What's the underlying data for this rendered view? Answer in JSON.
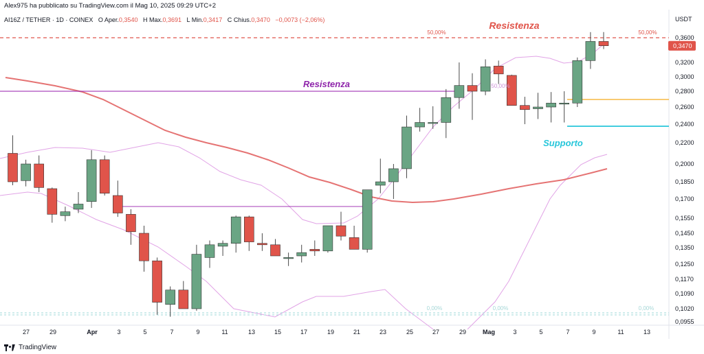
{
  "header": {
    "published": "Alex975 ha pubblicato su TradingView.com il Mag 10, 2025 09:29 UTC+2",
    "symbol": "AI16Z / TETHER · 1D · COINEX",
    "open_label": "O",
    "open_key": "Aper.",
    "open_value": "0,3540",
    "high_label": "H",
    "high_key": "Max.",
    "high_value": "0,3691",
    "low_label": "L",
    "low_key": "Min.",
    "low_value": "0,3417",
    "close_label": "C",
    "close_key": "Chius.",
    "close_value": "0,3470",
    "change": "−0,0073 (−2,06%)"
  },
  "footer": {
    "brand": "TradingView"
  },
  "chart_data": {
    "type": "candlestick",
    "currency": "USDT",
    "last_price": "0,3470",
    "y_ticks": [
      "0,3600",
      "0,3200",
      "0,3000",
      "0,2800",
      "0,2600",
      "0,2400",
      "0,2200",
      "0,2000",
      "0,1850",
      "0,1700",
      "0,1550",
      "0,1450",
      "0,1350",
      "0,1250",
      "0,1170",
      "0,1090",
      "0,1020",
      "0,0955"
    ],
    "x_ticks": [
      "27",
      "29",
      "Apr",
      "3",
      "5",
      "7",
      "9",
      "11",
      "13",
      "15",
      "17",
      "19",
      "21",
      "23",
      "25",
      "27",
      "29",
      "Mag",
      "3",
      "5",
      "7",
      "9",
      "11",
      "13"
    ],
    "candles": [
      {
        "o": 0.21,
        "h": 0.228,
        "l": 0.182,
        "c": 0.185
      },
      {
        "o": 0.186,
        "h": 0.204,
        "l": 0.181,
        "c": 0.2
      },
      {
        "o": 0.2,
        "h": 0.208,
        "l": 0.176,
        "c": 0.18
      },
      {
        "o": 0.179,
        "h": 0.18,
        "l": 0.152,
        "c": 0.158
      },
      {
        "o": 0.157,
        "h": 0.164,
        "l": 0.153,
        "c": 0.16
      },
      {
        "o": 0.162,
        "h": 0.176,
        "l": 0.159,
        "c": 0.166
      },
      {
        "o": 0.168,
        "h": 0.213,
        "l": 0.163,
        "c": 0.204
      },
      {
        "o": 0.204,
        "h": 0.208,
        "l": 0.173,
        "c": 0.175
      },
      {
        "o": 0.173,
        "h": 0.186,
        "l": 0.156,
        "c": 0.159
      },
      {
        "o": 0.158,
        "h": 0.162,
        "l": 0.137,
        "c": 0.146
      },
      {
        "o": 0.145,
        "h": 0.15,
        "l": 0.121,
        "c": 0.127
      },
      {
        "o": 0.127,
        "h": 0.129,
        "l": 0.099,
        "c": 0.105
      },
      {
        "o": 0.104,
        "h": 0.113,
        "l": 0.098,
        "c": 0.111
      },
      {
        "o": 0.111,
        "h": 0.116,
        "l": 0.102,
        "c": 0.102
      },
      {
        "o": 0.102,
        "h": 0.137,
        "l": 0.101,
        "c": 0.131
      },
      {
        "o": 0.129,
        "h": 0.14,
        "l": 0.123,
        "c": 0.137
      },
      {
        "o": 0.136,
        "h": 0.14,
        "l": 0.13,
        "c": 0.138
      },
      {
        "o": 0.138,
        "h": 0.157,
        "l": 0.132,
        "c": 0.156
      },
      {
        "o": 0.156,
        "h": 0.157,
        "l": 0.133,
        "c": 0.139
      },
      {
        "o": 0.138,
        "h": 0.145,
        "l": 0.133,
        "c": 0.137
      },
      {
        "o": 0.137,
        "h": 0.141,
        "l": 0.13,
        "c": 0.13
      },
      {
        "o": 0.129,
        "h": 0.132,
        "l": 0.124,
        "c": 0.129
      },
      {
        "o": 0.13,
        "h": 0.137,
        "l": 0.126,
        "c": 0.132
      },
      {
        "o": 0.134,
        "h": 0.14,
        "l": 0.13,
        "c": 0.133
      },
      {
        "o": 0.133,
        "h": 0.15,
        "l": 0.132,
        "c": 0.15
      },
      {
        "o": 0.15,
        "h": 0.16,
        "l": 0.14,
        "c": 0.143
      },
      {
        "o": 0.142,
        "h": 0.15,
        "l": 0.134,
        "c": 0.134
      },
      {
        "o": 0.134,
        "h": 0.177,
        "l": 0.132,
        "c": 0.178
      },
      {
        "o": 0.182,
        "h": 0.205,
        "l": 0.175,
        "c": 0.185
      },
      {
        "o": 0.185,
        "h": 0.2,
        "l": 0.17,
        "c": 0.196
      },
      {
        "o": 0.196,
        "h": 0.25,
        "l": 0.188,
        "c": 0.237
      },
      {
        "o": 0.237,
        "h": 0.259,
        "l": 0.232,
        "c": 0.242
      },
      {
        "o": 0.241,
        "h": 0.261,
        "l": 0.235,
        "c": 0.242
      },
      {
        "o": 0.242,
        "h": 0.283,
        "l": 0.225,
        "c": 0.272
      },
      {
        "o": 0.272,
        "h": 0.32,
        "l": 0.258,
        "c": 0.288
      },
      {
        "o": 0.288,
        "h": 0.305,
        "l": 0.245,
        "c": 0.28
      },
      {
        "o": 0.28,
        "h": 0.325,
        "l": 0.275,
        "c": 0.314
      },
      {
        "o": 0.315,
        "h": 0.323,
        "l": 0.29,
        "c": 0.304
      },
      {
        "o": 0.302,
        "h": 0.303,
        "l": 0.262,
        "c": 0.262
      },
      {
        "o": 0.262,
        "h": 0.273,
        "l": 0.24,
        "c": 0.257
      },
      {
        "o": 0.258,
        "h": 0.278,
        "l": 0.246,
        "c": 0.26
      },
      {
        "o": 0.26,
        "h": 0.279,
        "l": 0.242,
        "c": 0.265
      },
      {
        "o": 0.264,
        "h": 0.28,
        "l": 0.242,
        "c": 0.265
      },
      {
        "o": 0.265,
        "h": 0.328,
        "l": 0.26,
        "c": 0.323
      },
      {
        "o": 0.323,
        "h": 0.3691,
        "l": 0.311,
        "c": 0.354
      },
      {
        "o": 0.354,
        "h": 0.3691,
        "l": 0.3417,
        "c": 0.347
      }
    ],
    "annotations": {
      "resistance_top": "Resistenza",
      "resistance_mid": "Resistenza",
      "support": "Supporto",
      "fib_top_left": "50,00%",
      "fib_top_right": "50,00%",
      "fib_mid": "50,00%",
      "fib_bottom_1": "0,00%",
      "fib_bottom_2": "0,00%",
      "fib_bottom_3": "0,00%"
    },
    "levels": {
      "resistance_top": 0.36,
      "resistance_mid": 0.28,
      "resistance_low": 0.165,
      "orange": 0.269,
      "support": 0.24,
      "fib_zero": 0.1
    },
    "colors": {
      "up": "#6aa584",
      "down": "#e0544a",
      "resistance_top": "#e0544a",
      "resistance_mid": "#9c27b0",
      "support": "#26c6da",
      "orange": "#f5b942",
      "ma": "#e57373",
      "bollinger": "#e1a3e6"
    }
  }
}
